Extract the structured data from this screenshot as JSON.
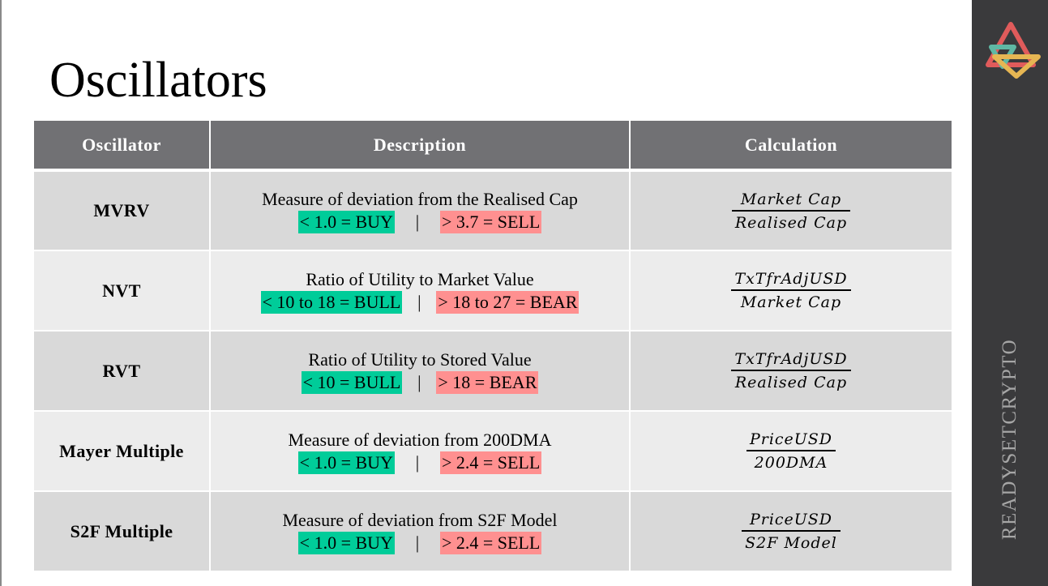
{
  "slide": {
    "title": "Oscillators",
    "brand": "READYSETCRYPTO"
  },
  "table": {
    "headers": [
      "Oscillator",
      "Description",
      "Calculation"
    ],
    "rows": [
      {
        "name": "MVRV",
        "description": "Measure of deviation from the Realised Cap",
        "low": "< 1.0 = BUY",
        "separator": "|",
        "high": "> 3.7 = SELL",
        "numerator": "Market Cap",
        "denominator": "Realised Cap"
      },
      {
        "name": "NVT",
        "description": "Ratio of Utility to Market Value",
        "low": "< 10 to 18 = BULL",
        "separator": "|",
        "high": "> 18 to 27 = BEAR",
        "numerator": "TxTfrAdjUSD",
        "denominator": "Market Cap"
      },
      {
        "name": "RVT",
        "description": "Ratio of Utility to Stored Value",
        "low": "< 10 = BULL",
        "separator": "|",
        "high": "> 18 = BEAR",
        "numerator": "TxTfrAdjUSD",
        "denominator": "Realised Cap"
      },
      {
        "name": "Mayer Multiple",
        "description": "Measure of deviation from 200DMA",
        "low": "< 1.0 = BUY",
        "separator": "|",
        "high": "> 2.4 = SELL",
        "numerator": "PriceUSD",
        "denominator": "200DMA"
      },
      {
        "name": "S2F Multiple",
        "description": "Measure of deviation from S2F Model",
        "low": "< 1.0 = BUY",
        "separator": "|",
        "high": "> 2.4 = SELL",
        "numerator": "PriceUSD",
        "denominator": "S2F Model"
      }
    ]
  },
  "colors": {
    "header_bg": "#717174",
    "buy": "#00cc99",
    "sell": "#ff9090",
    "sidebar": "#3a3a3c",
    "row_dark": "#d9d9d9",
    "row_light": "#ececec"
  },
  "icons": {
    "logo": "triangle-knot-logo-icon"
  }
}
